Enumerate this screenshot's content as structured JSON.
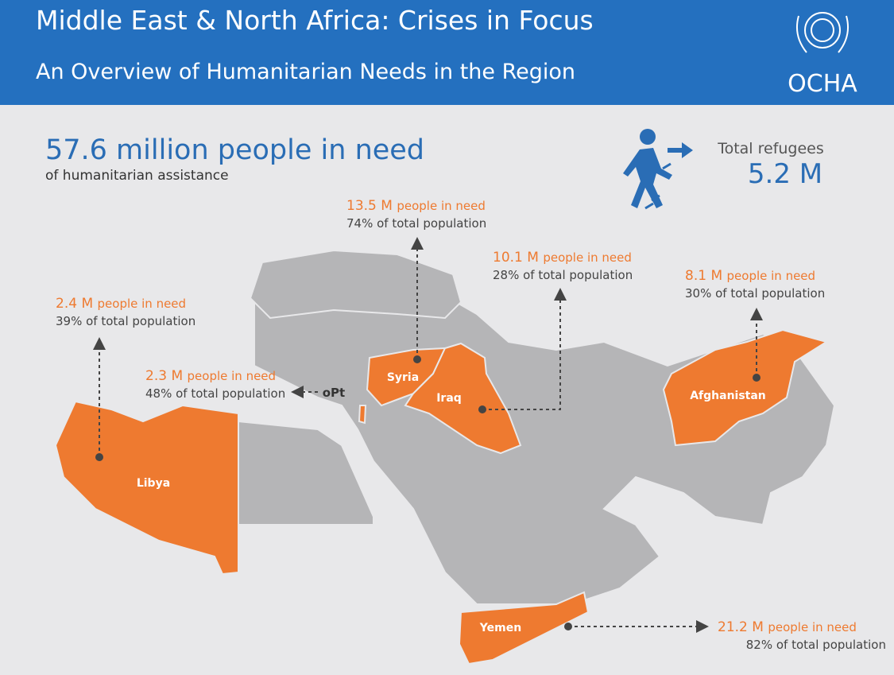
{
  "header": {
    "title": "Middle East & North Africa: Crises in Focus",
    "subtitle": "An Overview of Humanitarian Needs in the Region",
    "logo_text": "OCHA"
  },
  "summary": {
    "headline": "57.6 million people in need",
    "subline": "of humanitarian assistance"
  },
  "refugees": {
    "label": "Total refugees",
    "value": "5.2 M"
  },
  "countries": [
    {
      "name": "Syria",
      "need": "13.5 M",
      "need_label": "people in need",
      "share": "74% of total population"
    },
    {
      "name": "Iraq",
      "need": "10.1 M",
      "need_label": "people in need",
      "share": "28% of total population"
    },
    {
      "name": "Afghanistan",
      "need": "8.1 M",
      "need_label": "people in need",
      "share": "30% of total population"
    },
    {
      "name": "Libya",
      "need": "2.4 M",
      "need_label": "people in need",
      "share": "39% of total population"
    },
    {
      "name": "oPt",
      "need": "2.3 M",
      "need_label": "people in need",
      "share": "48% of total population"
    },
    {
      "name": "Yemen",
      "need": "21.2 M",
      "need_label": "people in need",
      "share": "82% of total population"
    }
  ]
}
